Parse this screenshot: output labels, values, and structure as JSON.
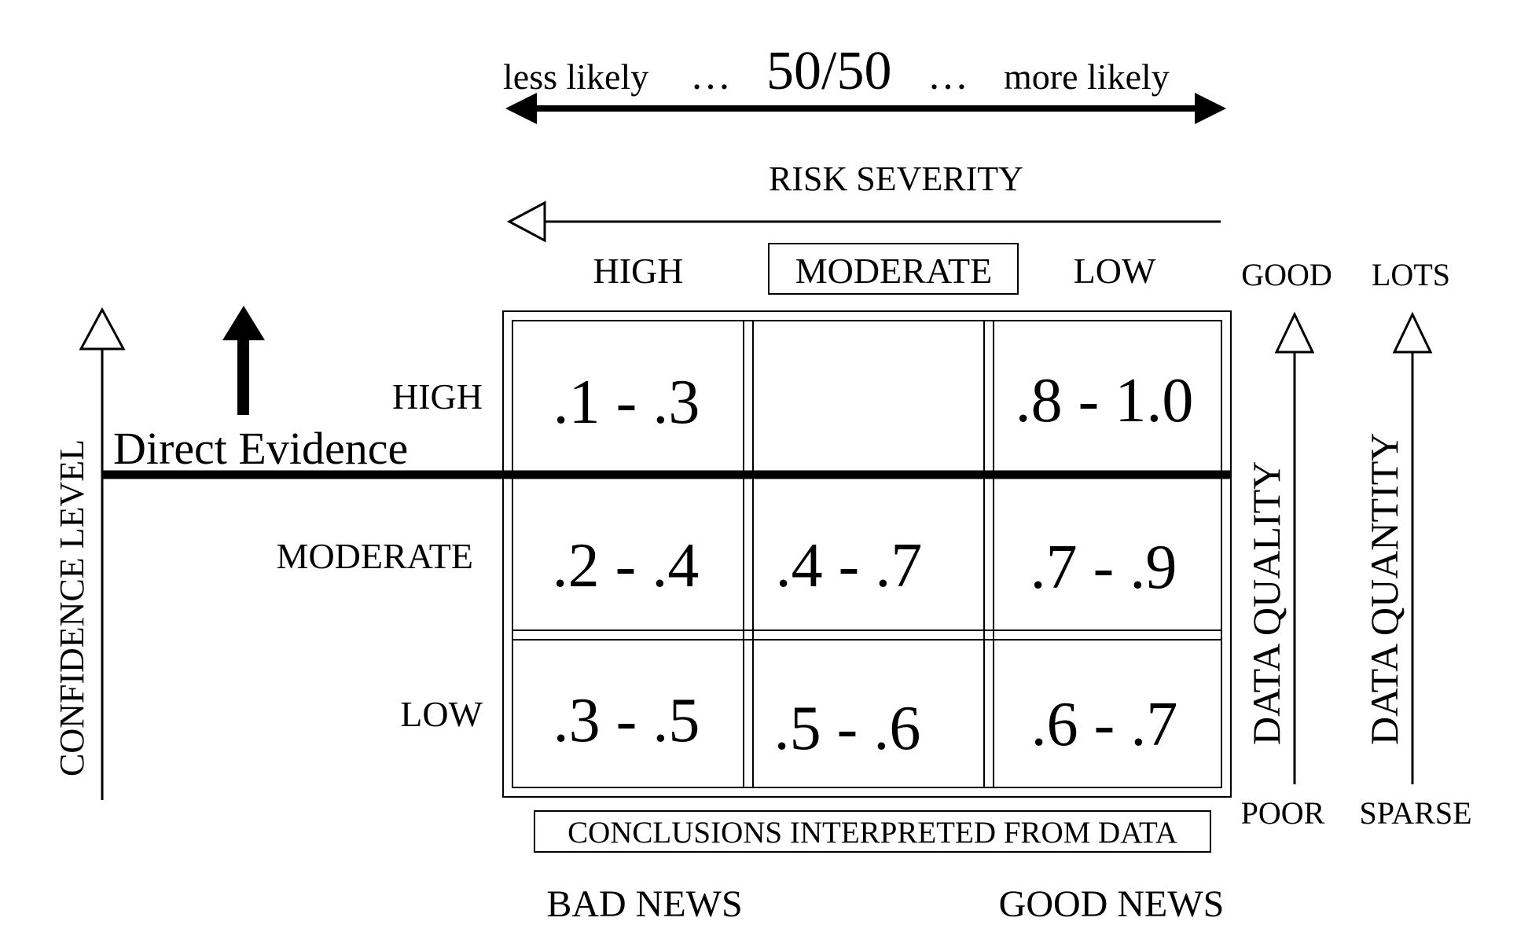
{
  "likelihood_scale": {
    "left_label": "less likely",
    "left_dots": "…",
    "center_label": "50/50",
    "right_dots": "…",
    "right_label": "more likely"
  },
  "risk_severity": {
    "title": "RISK  SEVERITY",
    "columns": [
      "HIGH",
      "MODERATE",
      "LOW"
    ]
  },
  "confidence": {
    "axis_label": "CONFIDENCE LEVEL",
    "rows": [
      "HIGH",
      "MODERATE",
      "LOW"
    ]
  },
  "direct_evidence": {
    "label": "Direct Evidence"
  },
  "grid": {
    "cells": [
      [
        ".1 - .3",
        "",
        ".8 - 1.0"
      ],
      [
        ".2 - .4",
        ".4 - .7",
        ".7 - .9"
      ],
      [
        ".3 - .5",
        ".5 - .6",
        ".6 - .7"
      ]
    ]
  },
  "data_quality": {
    "label": "DATA QUALITY",
    "top": "GOOD",
    "bottom": "POOR"
  },
  "data_quantity": {
    "label": "DATA QUANTITY",
    "top": "LOTS",
    "bottom": "SPARSE"
  },
  "footer": {
    "conclusions": "CONCLUSIONS INTERPRETED FROM DATA",
    "bad_news": "BAD NEWS",
    "good_news": "GOOD NEWS"
  }
}
